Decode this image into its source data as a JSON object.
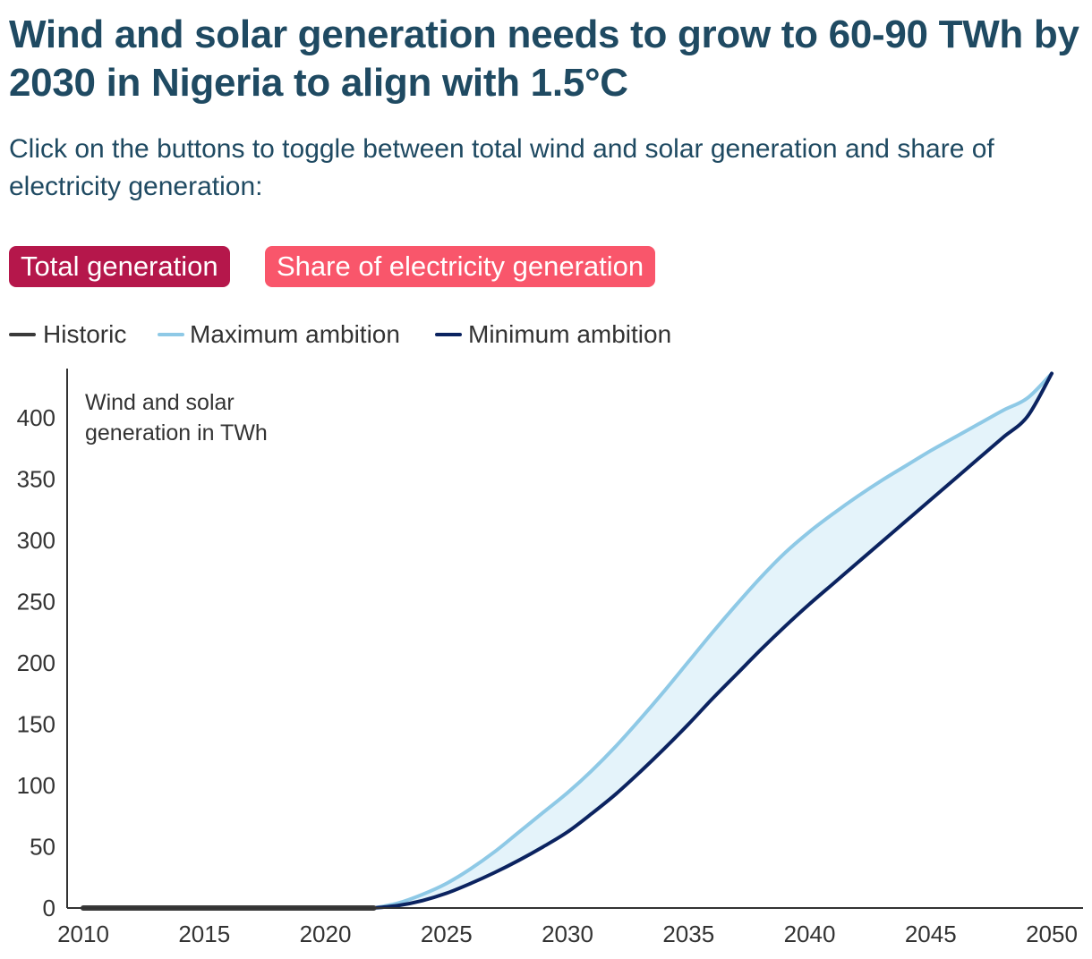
{
  "header": {
    "title": "Wind and solar generation needs to grow to 60-90 TWh by 2030 in Nigeria to align with 1.5°C",
    "subtitle": "Click on the buttons to toggle between total wind and solar generation and share of electricity generation:"
  },
  "buttons": {
    "total_label": "Total generation",
    "share_label": "Share of electricity generation"
  },
  "colors": {
    "historic": "#3a3a3a",
    "maximum": "#8ec9e6",
    "minimum": "#0b2360",
    "band": "#e4f3fa",
    "button_active": "#b5174b",
    "button_inactive": "#f9566b",
    "title": "#1f4a62"
  },
  "chart_data": {
    "type": "line",
    "ylabel": "Wind and solar generation in TWh",
    "ylim": [
      0,
      440
    ],
    "xlim": [
      2010,
      2050
    ],
    "x_ticks": [
      2010,
      2015,
      2020,
      2025,
      2030,
      2035,
      2040,
      2045,
      2050
    ],
    "y_ticks": [
      0,
      50,
      100,
      150,
      200,
      250,
      300,
      350,
      400
    ],
    "grid": false,
    "legend_position": "top-left",
    "series": [
      {
        "name": "Historic",
        "x": [
          2010,
          2011,
          2012,
          2013,
          2014,
          2015,
          2016,
          2017,
          2018,
          2019,
          2020,
          2021,
          2022
        ],
        "values": [
          0,
          0,
          0,
          0,
          0,
          0,
          0,
          0,
          0,
          0,
          0,
          0,
          0
        ]
      },
      {
        "name": "Maximum ambition",
        "x": [
          2022,
          2023,
          2024,
          2025,
          2026,
          2027,
          2028,
          2029,
          2030,
          2031,
          2032,
          2033,
          2034,
          2035,
          2036,
          2037,
          2038,
          2039,
          2040,
          2041,
          2042,
          2043,
          2044,
          2045,
          2046,
          2047,
          2048,
          2049,
          2050
        ],
        "values": [
          0,
          4,
          11,
          20,
          32,
          46,
          62,
          78,
          94,
          112,
          132,
          154,
          177,
          201,
          225,
          248,
          270,
          290,
          307,
          322,
          336,
          349,
          361,
          373,
          384,
          395,
          406,
          416,
          436
        ]
      },
      {
        "name": "Minimum ambition",
        "x": [
          2022,
          2023,
          2024,
          2025,
          2026,
          2027,
          2028,
          2029,
          2030,
          2031,
          2032,
          2033,
          2034,
          2035,
          2036,
          2037,
          2038,
          2039,
          2040,
          2041,
          2042,
          2043,
          2044,
          2045,
          2046,
          2047,
          2048,
          2049,
          2050
        ],
        "values": [
          0,
          2,
          6,
          12,
          20,
          29,
          39,
          50,
          62,
          77,
          93,
          111,
          130,
          150,
          171,
          191,
          211,
          230,
          248,
          265,
          282,
          299,
          316,
          333,
          350,
          367,
          384,
          401,
          436
        ]
      }
    ]
  }
}
